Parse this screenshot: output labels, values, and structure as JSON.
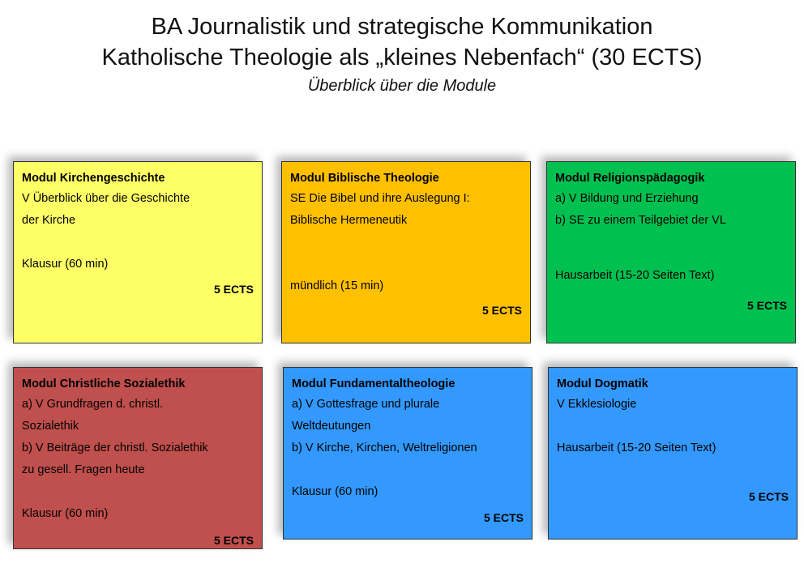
{
  "header": {
    "title_line1": "BA Journalistik und strategische Kommunikation",
    "title_line2": "Katholische Theologie als „kleines Nebenfach“ (30 ECTS)",
    "subtitle": "Überblick über die Module"
  },
  "modules": [
    {
      "title": "Modul Kirchengeschichte",
      "line1": "V Überblick über die Geschichte",
      "line2": "der Kirche",
      "exam": "Klausur (60 min)",
      "ects": "5 ECTS",
      "color": "#ffff66"
    },
    {
      "title": "Modul Biblische Theologie",
      "line1": "SE Die Bibel und ihre Auslegung I:",
      "line2": "Biblische Hermeneutik",
      "exam": "mündlich (15 min)",
      "ects": "5 ECTS",
      "color": "#ffc000"
    },
    {
      "title": "Modul Religionspädagogik",
      "line1": "a) V Bildung und Erziehung",
      "line2": "b) SE zu einem Teilgebiet der VL",
      "exam": "Hausarbeit (15-20 Seiten Text)",
      "ects": "5 ECTS",
      "color": "#00c050"
    },
    {
      "title": "Modul Christliche Sozialethik",
      "line1": "a) V Grundfragen d. christl.",
      "line2": "Sozialethik",
      "line3": "b) V Beiträge der christl. Sozialethik",
      "line4": "zu gesell. Fragen heute",
      "exam": "Klausur (60 min)",
      "ects": "5 ECTS",
      "color": "#c0504d"
    },
    {
      "title": "Modul Fundamentaltheologie",
      "line1": "a) V Gottesfrage und plurale",
      "line2": "Weltdeutungen",
      "line3": "b) V Kirche, Kirchen, Weltreligionen",
      "exam": "Klausur (60 min)",
      "ects": "5 ECTS",
      "color": "#3399ff"
    },
    {
      "title": "Modul Dogmatik",
      "line1": "V Ekklesiologie",
      "exam": "Hausarbeit (15-20 Seiten Text)",
      "ects": "5 ECTS",
      "color": "#3399ff"
    }
  ]
}
